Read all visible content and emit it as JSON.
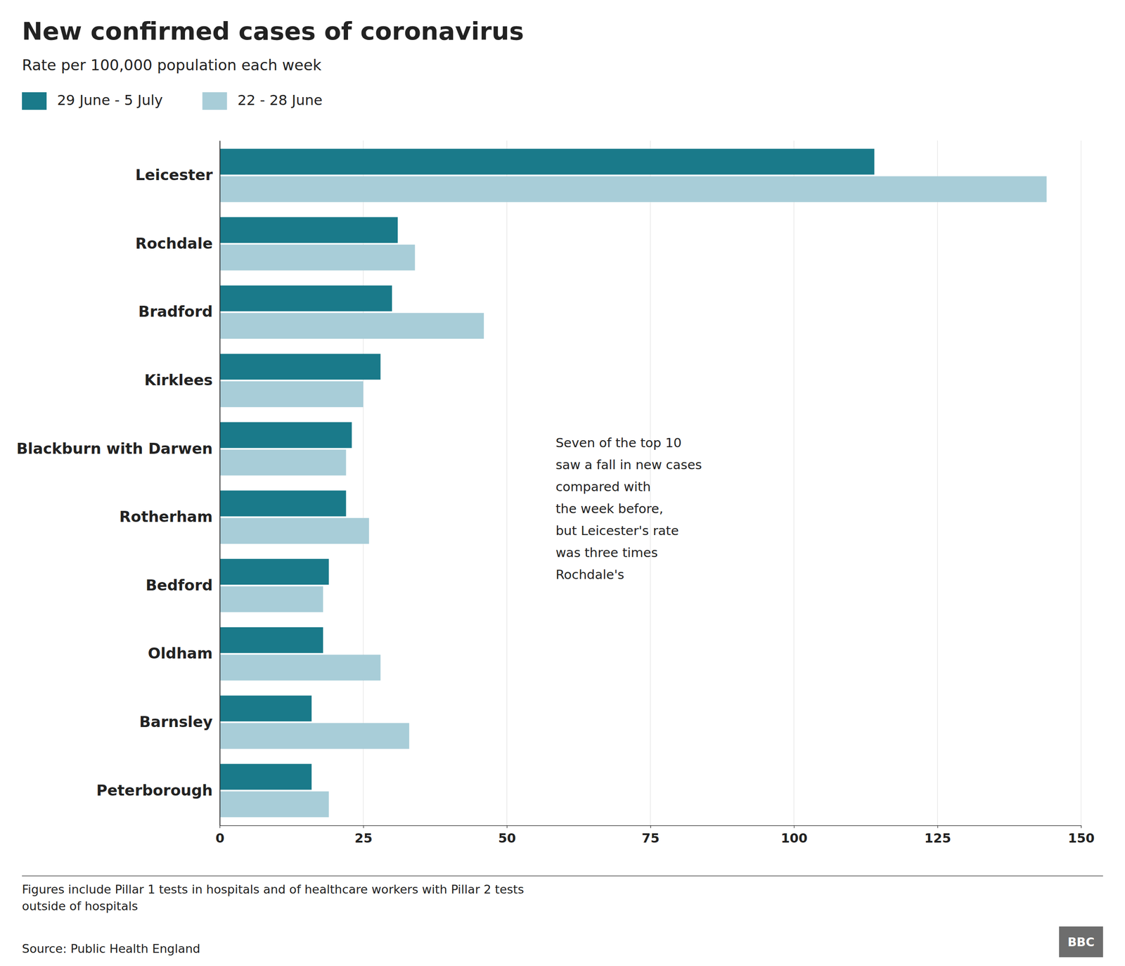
{
  "chart_data": {
    "type": "bar",
    "orientation": "horizontal",
    "title": "New confirmed cases of coronavirus",
    "subtitle": "Rate per 100,000 population each week",
    "categories": [
      "Leicester",
      "Rochdale",
      "Bradford",
      "Kirklees",
      "Blackburn with Darwen",
      "Rotherham",
      "Bedford",
      "Oldham",
      "Barnsley",
      "Peterborough"
    ],
    "series": [
      {
        "name": "29 June - 5 July",
        "color": "#1a7a8a",
        "values": [
          114,
          31,
          30,
          28,
          23,
          22,
          19,
          18,
          16,
          16
        ]
      },
      {
        "name": "22 - 28 June",
        "color": "#a8cdd8",
        "values": [
          144,
          34,
          46,
          25,
          22,
          26,
          18,
          28,
          33,
          19
        ]
      }
    ],
    "xlim": [
      0,
      150
    ],
    "xticks": [
      0,
      25,
      50,
      75,
      100,
      125,
      150
    ],
    "grid": true,
    "annotation": "Seven of the top 10\nsaw a fall in new cases\ncompared with\nthe week before,\nbut Leicester's rate\nwas three times\nRochdale's",
    "footnotes": [
      "Figures include Pillar 1 tests in hospitals and of healthcare workers with Pillar 2 tests",
      "outside of hospitals"
    ],
    "source": "Source: Public Health England",
    "logo": "BBC"
  }
}
